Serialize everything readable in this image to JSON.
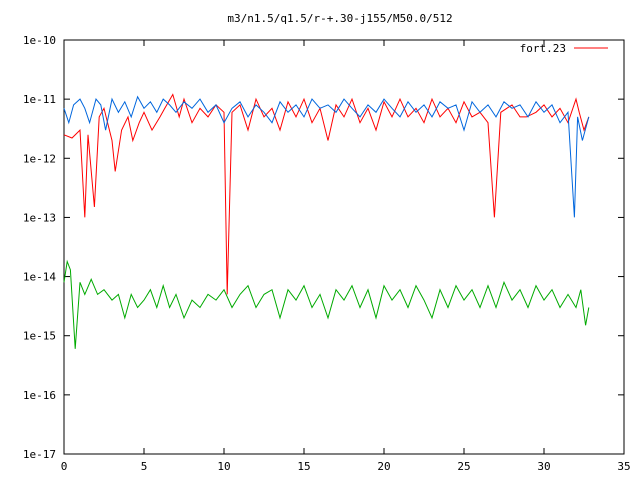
{
  "chart_data": {
    "type": "line",
    "title": "m3/n1.5/q1.5/r-+.30-j155/M50.0/512",
    "xlabel": "",
    "ylabel": "",
    "xlim": [
      0,
      35
    ],
    "ylim": [
      1e-17,
      1e-10
    ],
    "yscale": "log",
    "grid": false,
    "legend_position": "top-right",
    "x_ticks": [
      0,
      5,
      10,
      15,
      20,
      25,
      30,
      35
    ],
    "x_tick_labels": [
      "0",
      "5",
      "10",
      "15",
      "20",
      "25",
      "30",
      "35"
    ],
    "y_ticks": [
      1e-17,
      1e-16,
      1e-15,
      1e-14,
      1e-13,
      1e-12,
      1e-11,
      1e-10
    ],
    "y_tick_labels": [
      "1e-17",
      "1e-16",
      "1e-15",
      "1e-14",
      "1e-13",
      "1e-12",
      "1e-11",
      "1e-10"
    ],
    "series": [
      {
        "name": "fort.23",
        "color": "#ff0000",
        "x": [
          0,
          0.5,
          1,
          1.3,
          1.5,
          1.9,
          2.2,
          2.5,
          3,
          3.2,
          3.6,
          4,
          4.3,
          4.7,
          5,
          5.5,
          6,
          6.3,
          6.8,
          7.2,
          7.5,
          8,
          8.5,
          9,
          9.5,
          10,
          10.2,
          10.5,
          11,
          11.5,
          12,
          12.5,
          13,
          13.5,
          14,
          14.5,
          15,
          15.5,
          16,
          16.5,
          17,
          17.5,
          18,
          18.5,
          19,
          19.5,
          20,
          20.5,
          21,
          21.5,
          22,
          22.5,
          23,
          23.5,
          24,
          24.5,
          25,
          25.5,
          26,
          26.5,
          26.9,
          27.3,
          28,
          28.5,
          28.9,
          29.5,
          30,
          30.5,
          31,
          31.5,
          32,
          32.2,
          32.5,
          32.8
        ],
        "y": [
          2.5e-12,
          2.2e-12,
          3e-12,
          1e-13,
          2.5e-12,
          1.5e-13,
          5e-12,
          7e-12,
          2e-12,
          6e-13,
          3e-12,
          5e-12,
          2e-12,
          4e-12,
          6e-12,
          3e-12,
          5e-12,
          7e-12,
          1.2e-11,
          5e-12,
          1e-11,
          4e-12,
          7e-12,
          5e-12,
          8e-12,
          6e-12,
          5e-15,
          6e-12,
          8e-12,
          3e-12,
          1e-11,
          5e-12,
          7e-12,
          3e-12,
          9e-12,
          5e-12,
          1e-11,
          4e-12,
          7e-12,
          2e-12,
          8e-12,
          5e-12,
          1e-11,
          4e-12,
          7e-12,
          3e-12,
          9e-12,
          5e-12,
          1e-11,
          5e-12,
          7e-12,
          4e-12,
          1e-11,
          5e-12,
          7e-12,
          4e-12,
          9e-12,
          5e-12,
          6e-12,
          4e-12,
          1e-13,
          6e-12,
          8e-12,
          5e-12,
          5e-12,
          6e-12,
          8e-12,
          5e-12,
          7e-12,
          4e-12,
          1e-11,
          6e-12,
          3e-12,
          5e-12
        ]
      },
      {
        "name": "",
        "color": "#0066dd",
        "x": [
          0,
          0.3,
          0.6,
          1,
          1.3,
          1.6,
          2,
          2.3,
          2.6,
          3,
          3.4,
          3.8,
          4.2,
          4.6,
          5,
          5.4,
          5.8,
          6.2,
          6.6,
          7,
          7.5,
          8,
          8.5,
          9,
          9.5,
          10,
          10.5,
          11,
          11.5,
          12,
          12.5,
          13,
          13.5,
          14,
          14.5,
          15,
          15.5,
          16,
          16.5,
          17,
          17.5,
          18,
          18.5,
          19,
          19.5,
          20,
          20.5,
          21,
          21.5,
          22,
          22.5,
          23,
          23.5,
          24,
          24.5,
          25,
          25.5,
          26,
          26.5,
          27,
          27.5,
          28,
          28.5,
          29,
          29.5,
          30,
          30.5,
          31,
          31.5,
          31.9,
          32.1,
          32.4,
          32.8
        ],
        "y": [
          7e-12,
          4e-12,
          8e-12,
          1e-11,
          7e-12,
          4e-12,
          1e-11,
          8e-12,
          3e-12,
          1e-11,
          6e-12,
          9e-12,
          5e-12,
          1.1e-11,
          7e-12,
          9e-12,
          6e-12,
          1e-11,
          8e-12,
          6e-12,
          9e-12,
          7e-12,
          1e-11,
          6e-12,
          8e-12,
          4e-12,
          7e-12,
          9e-12,
          5e-12,
          8e-12,
          6e-12,
          4e-12,
          9e-12,
          6e-12,
          8e-12,
          5e-12,
          1e-11,
          7e-12,
          8e-12,
          6e-12,
          1e-11,
          7e-12,
          5e-12,
          8e-12,
          6e-12,
          1e-11,
          7e-12,
          5e-12,
          9e-12,
          6e-12,
          8e-12,
          5e-12,
          9e-12,
          7e-12,
          8e-12,
          3e-12,
          9e-12,
          6e-12,
          8e-12,
          5e-12,
          9e-12,
          7e-12,
          8e-12,
          5e-12,
          9e-12,
          6e-12,
          8e-12,
          4e-12,
          6e-12,
          1e-13,
          5e-12,
          2e-12,
          5e-12
        ]
      },
      {
        "name": "",
        "color": "#00aa00",
        "x": [
          0,
          0.2,
          0.4,
          0.7,
          1,
          1.3,
          1.7,
          2.1,
          2.5,
          3,
          3.4,
          3.8,
          4.2,
          4.6,
          5,
          5.4,
          5.8,
          6.2,
          6.6,
          7,
          7.5,
          8,
          8.5,
          9,
          9.5,
          10,
          10.5,
          11,
          11.5,
          12,
          12.5,
          13,
          13.5,
          14,
          14.5,
          15,
          15.5,
          16,
          16.5,
          17,
          17.5,
          18,
          18.5,
          19,
          19.5,
          20,
          20.5,
          21,
          21.5,
          22,
          22.5,
          23,
          23.5,
          24,
          24.5,
          25,
          25.5,
          26,
          26.5,
          27,
          27.5,
          28,
          28.5,
          29,
          29.5,
          30,
          30.5,
          31,
          31.5,
          32,
          32.3,
          32.6,
          32.8
        ],
        "y": [
          8e-15,
          1.8e-14,
          1.3e-14,
          6e-16,
          8e-15,
          5e-15,
          9e-15,
          5e-15,
          6e-15,
          4e-15,
          5e-15,
          2e-15,
          5e-15,
          3e-15,
          4e-15,
          6e-15,
          3e-15,
          7e-15,
          3e-15,
          5e-15,
          2e-15,
          4e-15,
          3e-15,
          5e-15,
          4e-15,
          6e-15,
          3e-15,
          5e-15,
          7e-15,
          3e-15,
          5e-15,
          6e-15,
          2e-15,
          6e-15,
          4e-15,
          7e-15,
          3e-15,
          5e-15,
          2e-15,
          6e-15,
          4e-15,
          7e-15,
          3e-15,
          6e-15,
          2e-15,
          7e-15,
          4e-15,
          6e-15,
          3e-15,
          7e-15,
          4e-15,
          2e-15,
          6e-15,
          3e-15,
          7e-15,
          4e-15,
          6e-15,
          3e-15,
          7e-15,
          3e-15,
          8e-15,
          4e-15,
          6e-15,
          3e-15,
          7e-15,
          4e-15,
          6e-15,
          3e-15,
          5e-15,
          3e-15,
          6e-15,
          1.5e-15,
          3e-15
        ]
      }
    ]
  }
}
